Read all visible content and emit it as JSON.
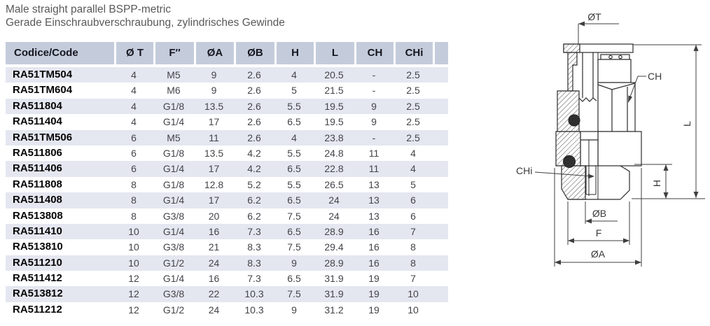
{
  "page": {
    "title_en": "Male straight parallel BSPP-metric",
    "title_de": "Gerade Einschraubverschraubung, zylindrisches Gewinde"
  },
  "colors": {
    "header_bg": "#c4ccdc",
    "row_alt_bg": "#e4e7f0"
  },
  "table": {
    "headers": [
      "Codice/Code",
      "Ø T",
      "F″",
      "ØA",
      "ØB",
      "H",
      "L",
      "CH",
      "CHi",
      ""
    ],
    "rows": [
      [
        "RA51TM504",
        "4",
        "M5",
        "9",
        "2.6",
        "4",
        "20.5",
        "-",
        "2.5"
      ],
      [
        "RA51TM604",
        "4",
        "M6",
        "9",
        "2.6",
        "5",
        "21.5",
        "-",
        "2.5"
      ],
      [
        "RA511804",
        "4",
        "G1/8",
        "13.5",
        "2.6",
        "5.5",
        "19.5",
        "9",
        "2.5"
      ],
      [
        "RA511404",
        "4",
        "G1/4",
        "17",
        "2.6",
        "6.5",
        "19.5",
        "9",
        "2.5"
      ],
      [
        "RA51TM506",
        "6",
        "M5",
        "11",
        "2.6",
        "4",
        "23.8",
        "-",
        "2.5"
      ],
      [
        "RA511806",
        "6",
        "G1/8",
        "13.5",
        "4.2",
        "5.5",
        "24.8",
        "11",
        "4"
      ],
      [
        "RA511406",
        "6",
        "G1/4",
        "17",
        "4.2",
        "6.5",
        "22.8",
        "11",
        "4"
      ],
      [
        "RA511808",
        "8",
        "G1/8",
        "12.8",
        "5.2",
        "5.5",
        "26.5",
        "13",
        "5"
      ],
      [
        "RA511408",
        "8",
        "G1/4",
        "17",
        "6.2",
        "6.5",
        "24",
        "13",
        "6"
      ],
      [
        "RA513808",
        "8",
        "G3/8",
        "20",
        "6.2",
        "7.5",
        "24",
        "13",
        "6"
      ],
      [
        "RA511410",
        "10",
        "G1/4",
        "16",
        "7.3",
        "6.5",
        "28.9",
        "16",
        "7"
      ],
      [
        "RA513810",
        "10",
        "G3/8",
        "21",
        "8.3",
        "7.5",
        "29.4",
        "16",
        "8"
      ],
      [
        "RA511210",
        "10",
        "G1/2",
        "24",
        "8.3",
        "9",
        "28.9",
        "16",
        "8"
      ],
      [
        "RA511412",
        "12",
        "G1/4",
        "16",
        "7.3",
        "6.5",
        "31.9",
        "19",
        "7"
      ],
      [
        "RA513812",
        "12",
        "G3/8",
        "22",
        "10.3",
        "7.5",
        "31.9",
        "19",
        "10"
      ],
      [
        "RA511212",
        "12",
        "G1/2",
        "24",
        "10.3",
        "9",
        "31.2",
        "19",
        "10"
      ]
    ]
  },
  "diagram": {
    "labels": {
      "tube_dia": "ØT",
      "hex": "CH",
      "length": "L",
      "hex_int": "CHi",
      "thread_h": "H",
      "bore": "ØB",
      "thread_f": "F",
      "body_dia": "ØA"
    }
  }
}
